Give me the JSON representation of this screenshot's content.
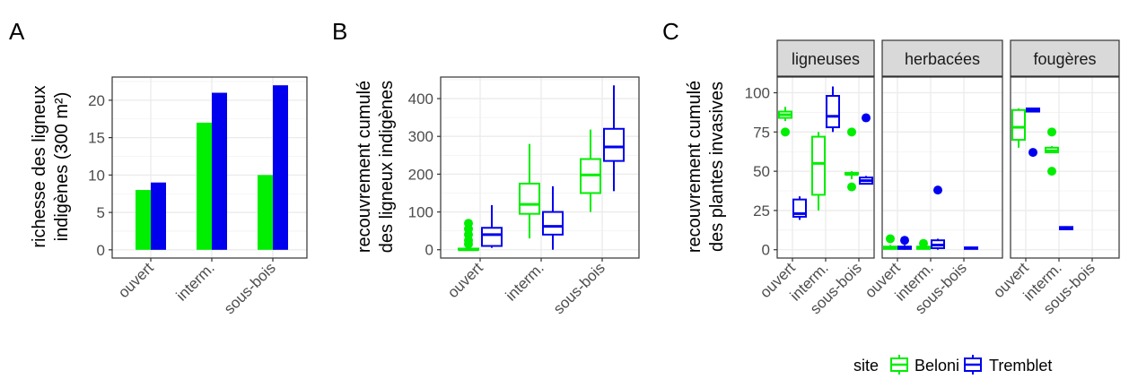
{
  "colors": {
    "beloni": "#00EE00",
    "tremblet": "#0000EE",
    "panel_bg": "#FFFFFF",
    "grid": "#EBEBEB",
    "strip_bg": "#D9D9D9",
    "axis_text": "#4D4D4D"
  },
  "panel_labels": {
    "a": "A",
    "b": "B",
    "c": "C"
  },
  "legend": {
    "title": "site",
    "items": [
      "Beloni",
      "Tremblet"
    ]
  },
  "chart_data": [
    {
      "panel": "A",
      "type": "bar",
      "ylabel_line1": "richesse des ligneux",
      "ylabel_line2": "indigènes (300 m²)",
      "categories": [
        "ouvert",
        "interm.",
        "sous-bois"
      ],
      "series": [
        {
          "name": "Beloni",
          "values": [
            8,
            17,
            10
          ]
        },
        {
          "name": "Tremblet",
          "values": [
            9,
            21,
            22
          ]
        }
      ],
      "yticks": [
        0,
        5,
        10,
        15,
        20
      ],
      "ylim": [
        -1.1,
        23.1
      ],
      "grid": true
    },
    {
      "panel": "B",
      "type": "boxplot",
      "ylabel_line1": "recouvrement cumulé",
      "ylabel_line2": "des ligneux indigènes",
      "categories": [
        "ouvert",
        "interm.",
        "sous-bois"
      ],
      "series": [
        {
          "name": "Beloni",
          "boxes": [
            {
              "min": 0,
              "q1": 0,
              "median": 0,
              "q3": 3,
              "max": 8,
              "outliers": [
                15,
                25,
                40,
                55,
                70
              ]
            },
            {
              "min": 30,
              "q1": 95,
              "median": 120,
              "q3": 175,
              "max": 280,
              "outliers": []
            },
            {
              "min": 100,
              "q1": 150,
              "median": 198,
              "q3": 240,
              "max": 318,
              "outliers": []
            }
          ]
        },
        {
          "name": "Tremblet",
          "boxes": [
            {
              "min": 5,
              "q1": 10,
              "median": 40,
              "q3": 58,
              "max": 118,
              "outliers": []
            },
            {
              "min": 0,
              "q1": 40,
              "median": 62,
              "q3": 100,
              "max": 168,
              "outliers": []
            },
            {
              "min": 155,
              "q1": 235,
              "median": 272,
              "q3": 320,
              "max": 435,
              "outliers": []
            }
          ]
        }
      ],
      "yticks": [
        0,
        100,
        200,
        300,
        400
      ],
      "ylim": [
        -22,
        457
      ],
      "grid": true
    },
    {
      "panel": "C",
      "type": "boxplot",
      "ylabel_line1": "recouvrement cumulé",
      "ylabel_line2": "des plantes invasives",
      "categories": [
        "ouvert",
        "interm.",
        "sous-bois"
      ],
      "yticks": [
        0,
        25,
        50,
        75,
        100
      ],
      "ylim": [
        -5.3,
        110
      ],
      "grid": true,
      "facets": [
        {
          "label": "ligneuses",
          "boxes": [
            {
              "series": "Beloni",
              "category": 0,
              "min": 82,
              "q1": 84,
              "median": 86,
              "q3": 88,
              "max": 91,
              "outliers": [
                75
              ]
            },
            {
              "series": "Tremblet",
              "category": 0,
              "min": 19,
              "q1": 21,
              "median": 23,
              "q3": 32,
              "max": 34,
              "outliers": []
            },
            {
              "series": "Beloni",
              "category": 1,
              "min": 25,
              "q1": 35,
              "median": 55,
              "q3": 72,
              "max": 75,
              "outliers": []
            },
            {
              "series": "Tremblet",
              "category": 1,
              "min": 75,
              "q1": 78,
              "median": 85,
              "q3": 98,
              "max": 104,
              "outliers": []
            },
            {
              "series": "Beloni",
              "category": 2,
              "min": 45,
              "q1": 48,
              "median": 48,
              "q3": 49,
              "max": 50,
              "outliers": [
                75,
                40
              ]
            },
            {
              "series": "Tremblet",
              "category": 2,
              "min": 42,
              "q1": 42,
              "median": 44,
              "q3": 46,
              "max": 47,
              "outliers": [
                84
              ]
            }
          ]
        },
        {
          "label": "herbacées",
          "boxes": [
            {
              "series": "Beloni",
              "category": 0,
              "min": 0,
              "q1": 0.5,
              "median": 1,
              "q3": 2,
              "max": 3,
              "outliers": [
                7
              ]
            },
            {
              "series": "Tremblet",
              "category": 0,
              "min": 0,
              "q1": 0.5,
              "median": 1,
              "q3": 2,
              "max": 3,
              "outliers": [
                6
              ]
            },
            {
              "series": "Beloni",
              "category": 1,
              "min": 0,
              "q1": 0.5,
              "median": 1,
              "q3": 2,
              "max": 3,
              "outliers": [
                4
              ]
            },
            {
              "series": "Tremblet",
              "category": 1,
              "min": 0,
              "q1": 1,
              "median": 3,
              "q3": 6,
              "max": 7,
              "outliers": [
                38
              ]
            },
            {
              "series": "Tremblet",
              "category": 2,
              "min": 0.5,
              "q1": 0.5,
              "median": 1,
              "q3": 1.5,
              "max": 2,
              "outliers": []
            }
          ]
        },
        {
          "label": "fougères",
          "boxes": [
            {
              "series": "Beloni",
              "category": 0,
              "min": 65,
              "q1": 70,
              "median": 78,
              "q3": 89,
              "max": 90,
              "outliers": []
            },
            {
              "series": "Tremblet",
              "category": 0,
              "min": 88,
              "q1": 88,
              "median": 89,
              "q3": 90,
              "max": 90,
              "outliers": [
                62
              ]
            },
            {
              "series": "Beloni",
              "category": 1,
              "min": 62,
              "q1": 62,
              "median": 63,
              "q3": 65,
              "max": 66,
              "outliers": [
                75,
                50
              ]
            },
            {
              "series": "Tremblet",
              "category": 1,
              "min": 13,
              "q1": 13,
              "median": 14,
              "q3": 14.5,
              "max": 15,
              "outliers": []
            }
          ]
        }
      ]
    }
  ]
}
